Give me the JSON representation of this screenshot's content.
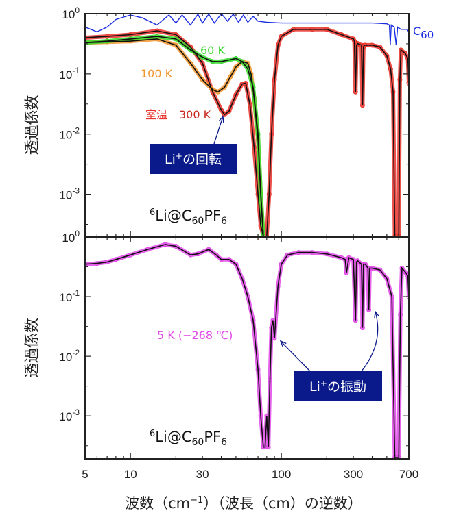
{
  "chart_data": [
    {
      "type": "line",
      "panel": "top",
      "ylabel": "透過係数",
      "x_scale": "log",
      "y_scale": "log",
      "xlim": [
        5,
        700
      ],
      "ylim": [
        0.0002,
        1
      ],
      "yticks": [
        {
          "v": 1,
          "label": "10",
          "exp": "0"
        },
        {
          "v": 0.1,
          "label": "10",
          "exp": "-1"
        },
        {
          "v": 0.01,
          "label": "10",
          "exp": "-2"
        },
        {
          "v": 0.001,
          "label": "10",
          "exp": "-3"
        }
      ],
      "compound": {
        "pre": "6",
        "main": "Li@C",
        "sub1": "60",
        "mid": "PF",
        "sub2": "6"
      },
      "annotation_box": {
        "text": "Li",
        "sup": "+",
        "rest": "の回転",
        "color": "#0a1a8a"
      },
      "series": [
        {
          "name": "C60",
          "color": "#1a2ee0",
          "marker": false,
          "x": [
            5,
            6,
            7,
            8,
            10,
            12,
            15,
            18,
            20,
            22,
            25,
            28,
            30,
            33,
            36,
            40,
            44,
            48,
            52,
            56,
            60,
            65,
            70,
            80,
            100,
            150,
            200,
            300,
            400,
            500,
            520,
            527,
            535,
            560,
            577,
            590,
            620,
            680,
            700
          ],
          "y": [
            0.6,
            0.5,
            0.6,
            0.8,
            0.95,
            0.85,
            0.65,
            0.95,
            0.7,
            0.95,
            0.65,
            0.98,
            0.7,
            0.98,
            0.7,
            1.0,
            0.75,
            0.98,
            0.72,
            0.95,
            0.72,
            0.9,
            0.75,
            0.72,
            0.7,
            0.7,
            0.7,
            0.7,
            0.7,
            0.68,
            0.65,
            0.3,
            0.65,
            0.6,
            0.3,
            0.6,
            0.55,
            0.55,
            0.5
          ]
        },
        {
          "name": "300 K",
          "label_prefix": "室温",
          "color": "#e8322a",
          "fit": true,
          "x": [
            5,
            7,
            10,
            15,
            20,
            25,
            30,
            35,
            40,
            42,
            45,
            50,
            55,
            58,
            62,
            66,
            70,
            73,
            76,
            80,
            83,
            86,
            90,
            95,
            100,
            120,
            160,
            200,
            250,
            300,
            305,
            310,
            315,
            320,
            340,
            345,
            350,
            355,
            360,
            400,
            450,
            500,
            530,
            550,
            565,
            580,
            600,
            610,
            620,
            660,
            690,
            700
          ],
          "y": [
            0.4,
            0.42,
            0.45,
            0.52,
            0.45,
            0.28,
            0.15,
            0.05,
            0.025,
            0.021,
            0.024,
            0.045,
            0.068,
            0.07,
            0.03,
            0.006,
            0.001,
            0.0003,
            0.0002,
            0.0002,
            0.001,
            0.01,
            0.08,
            0.3,
            0.42,
            0.55,
            0.55,
            0.55,
            0.45,
            0.38,
            0.35,
            0.05,
            0.3,
            0.32,
            0.3,
            0.03,
            0.28,
            0.3,
            0.3,
            0.3,
            0.28,
            0.2,
            0.12,
            0.05,
            0.0002,
            0.0002,
            0.0002,
            0.08,
            0.25,
            0.22,
            0.18,
            0.07
          ]
        },
        {
          "name": "100 K",
          "color": "#f0952e",
          "fit": true,
          "x": [
            5,
            7,
            10,
            15,
            20,
            25,
            30,
            35,
            38,
            42,
            46,
            50,
            55,
            60,
            63,
            66,
            70,
            73,
            76
          ],
          "y": [
            0.33,
            0.34,
            0.35,
            0.38,
            0.3,
            0.15,
            0.08,
            0.055,
            0.05,
            0.06,
            0.09,
            0.13,
            0.16,
            0.15,
            0.1,
            0.04,
            0.008,
            0.001,
            0.0002
          ]
        },
        {
          "name": "60 K",
          "color": "#37d92e",
          "fit": true,
          "x": [
            5,
            7,
            10,
            15,
            20,
            25,
            30,
            35,
            40,
            45,
            50,
            55,
            60,
            65,
            70,
            73,
            76
          ],
          "y": [
            0.33,
            0.35,
            0.38,
            0.42,
            0.38,
            0.25,
            0.19,
            0.16,
            0.16,
            0.17,
            0.18,
            0.16,
            0.12,
            0.06,
            0.01,
            0.001,
            0.0002
          ]
        }
      ],
      "labels": {
        "s60": "60 K",
        "s100": "100 K",
        "room": "室温",
        "s300": "300 K",
        "c60_main": "C",
        "c60_sub": "60"
      }
    },
    {
      "type": "line",
      "panel": "bottom",
      "ylabel": "透過係数",
      "xlabel": "波数（cm⁻¹）（波長（cm）の逆数）",
      "x_scale": "log",
      "y_scale": "log",
      "xlim": [
        5,
        700
      ],
      "ylim": [
        0.00019,
        1
      ],
      "xticks": [
        5,
        10,
        30,
        100,
        300,
        700
      ],
      "yticks": [
        {
          "v": 1,
          "label": "10",
          "exp": "0"
        },
        {
          "v": 0.1,
          "label": "10",
          "exp": "-1"
        },
        {
          "v": 0.01,
          "label": "10",
          "exp": "-2"
        },
        {
          "v": 0.001,
          "label": "10",
          "exp": "-3"
        }
      ],
      "compound": {
        "pre": "6",
        "main": "Li@C",
        "sub1": "60",
        "mid": "PF",
        "sub2": "6"
      },
      "annotation_box": {
        "text": "Li",
        "sup": "+",
        "rest": "の振動",
        "color": "#0a1a8a"
      },
      "series": [
        {
          "name": "5 K (−268 ℃)",
          "color": "#e048e8",
          "fit": true,
          "x": [
            5,
            6,
            7,
            8,
            10,
            13,
            17,
            20,
            25,
            28,
            33,
            37,
            40,
            45,
            50,
            55,
            60,
            65,
            70,
            73,
            76,
            78,
            80,
            82,
            84,
            86,
            88,
            90,
            95,
            100,
            110,
            130,
            160,
            200,
            250,
            265,
            270,
            280,
            300,
            310,
            315,
            320,
            340,
            345,
            350,
            360,
            375,
            380,
            385,
            400,
            450,
            500,
            540,
            565,
            580,
            600,
            615,
            630,
            670,
            690,
            700
          ],
          "y": [
            0.35,
            0.36,
            0.38,
            0.42,
            0.5,
            0.62,
            0.75,
            0.7,
            0.5,
            0.52,
            0.62,
            0.5,
            0.42,
            0.42,
            0.35,
            0.2,
            0.1,
            0.04,
            0.006,
            0.001,
            0.0003,
            0.0003,
            0.001,
            0.0003,
            0.004,
            0.03,
            0.04,
            0.02,
            0.15,
            0.35,
            0.5,
            0.55,
            0.55,
            0.52,
            0.45,
            0.42,
            0.25,
            0.45,
            0.42,
            0.04,
            0.38,
            0.4,
            0.35,
            0.03,
            0.35,
            0.35,
            0.3,
            0.06,
            0.3,
            0.3,
            0.28,
            0.2,
            0.1,
            0.0002,
            0.0002,
            0.0002,
            0.05,
            0.3,
            0.25,
            0.22,
            0.1
          ]
        }
      ],
      "labels": {
        "s5": "5 K (−268 ℃)"
      }
    }
  ],
  "xaxis_label": {
    "part1": "波数（cm",
    "sup": "−1",
    "part2": "）（波長（cm）の逆数）"
  }
}
